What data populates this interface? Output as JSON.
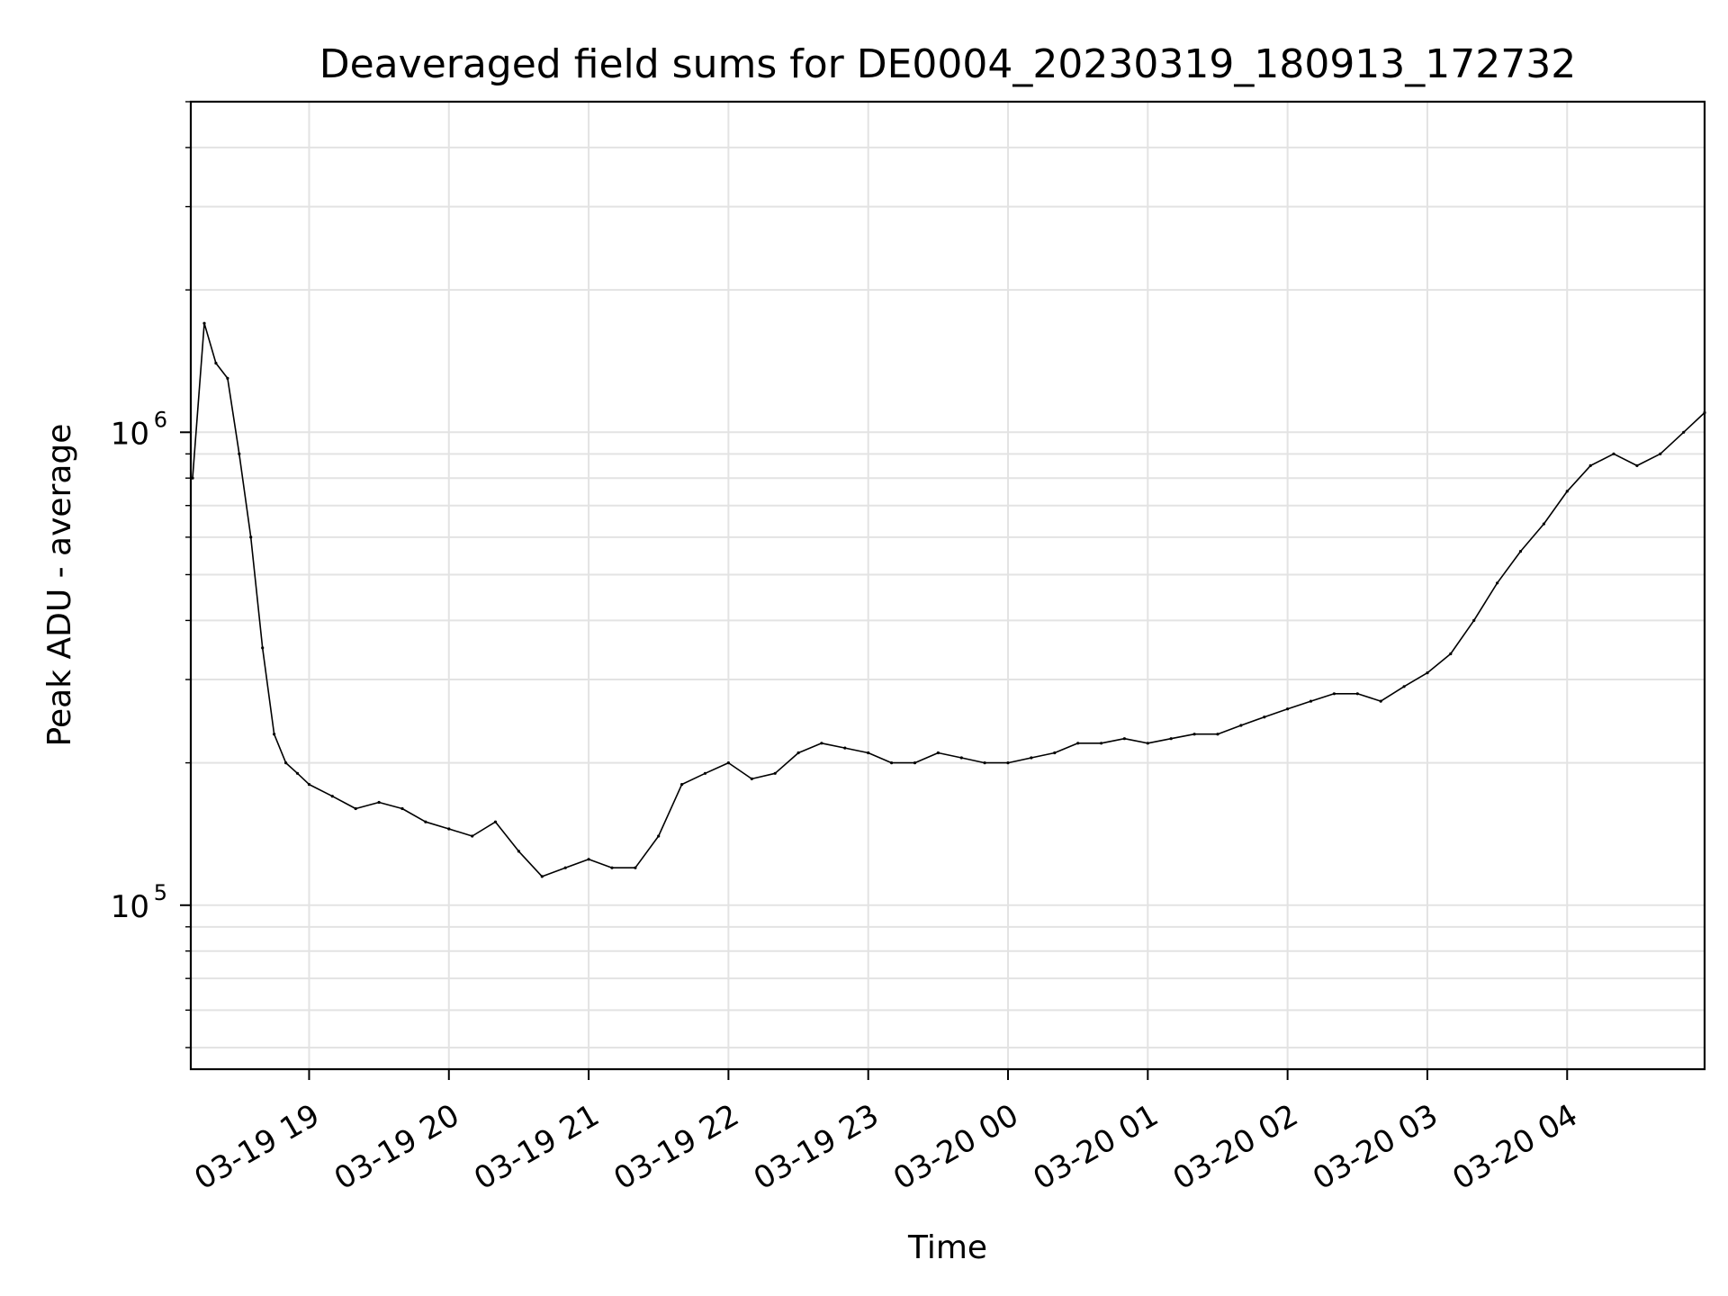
{
  "chart_data": {
    "type": "line",
    "title": "Deaveraged field sums for DE0004_20230319_180913_172732",
    "xlabel": "Time",
    "ylabel": "Peak ADU - average",
    "yscale": "log",
    "ylim": [
      45000,
      5000000
    ],
    "x_range": [
      "2023-03-19 18:09:13",
      "2023-03-20 04:59:00"
    ],
    "x_ticks": [
      {
        "label": "03-19 19",
        "time": "2023-03-19 19:00"
      },
      {
        "label": "03-19 20",
        "time": "2023-03-19 20:00"
      },
      {
        "label": "03-19 21",
        "time": "2023-03-19 21:00"
      },
      {
        "label": "03-19 22",
        "time": "2023-03-19 22:00"
      },
      {
        "label": "03-19 23",
        "time": "2023-03-19 23:00"
      },
      {
        "label": "03-20 00",
        "time": "2023-03-20 00:00"
      },
      {
        "label": "03-20 01",
        "time": "2023-03-20 01:00"
      },
      {
        "label": "03-20 02",
        "time": "2023-03-20 02:00"
      },
      {
        "label": "03-20 03",
        "time": "2023-03-20 03:00"
      },
      {
        "label": "03-20 04",
        "time": "2023-03-20 04:00"
      }
    ],
    "y_ticks": [
      {
        "base": "10",
        "exp": "5",
        "value": 100000
      },
      {
        "base": "10",
        "exp": "6",
        "value": 1000000
      }
    ],
    "grid": true,
    "line_color": "#000000",
    "series": [
      {
        "values": [
          [
            "2023-03-19 18:10",
            800000
          ],
          [
            "2023-03-19 18:15",
            1700000
          ],
          [
            "2023-03-19 18:20",
            1400000
          ],
          [
            "2023-03-19 18:25",
            1300000
          ],
          [
            "2023-03-19 18:30",
            900000
          ],
          [
            "2023-03-19 18:35",
            600000
          ],
          [
            "2023-03-19 18:40",
            350000
          ],
          [
            "2023-03-19 18:45",
            230000
          ],
          [
            "2023-03-19 18:50",
            200000
          ],
          [
            "2023-03-19 18:55",
            190000
          ],
          [
            "2023-03-19 19:00",
            180000
          ],
          [
            "2023-03-19 19:10",
            170000
          ],
          [
            "2023-03-19 19:20",
            160000
          ],
          [
            "2023-03-19 19:30",
            165000
          ],
          [
            "2023-03-19 19:40",
            160000
          ],
          [
            "2023-03-19 19:50",
            150000
          ],
          [
            "2023-03-19 20:00",
            145000
          ],
          [
            "2023-03-19 20:10",
            140000
          ],
          [
            "2023-03-19 20:20",
            150000
          ],
          [
            "2023-03-19 20:30",
            130000
          ],
          [
            "2023-03-19 20:40",
            115000
          ],
          [
            "2023-03-19 20:50",
            120000
          ],
          [
            "2023-03-19 21:00",
            125000
          ],
          [
            "2023-03-19 21:10",
            120000
          ],
          [
            "2023-03-19 21:20",
            120000
          ],
          [
            "2023-03-19 21:30",
            140000
          ],
          [
            "2023-03-19 21:40",
            180000
          ],
          [
            "2023-03-19 21:50",
            190000
          ],
          [
            "2023-03-19 22:00",
            200000
          ],
          [
            "2023-03-19 22:10",
            185000
          ],
          [
            "2023-03-19 22:20",
            190000
          ],
          [
            "2023-03-19 22:30",
            210000
          ],
          [
            "2023-03-19 22:40",
            220000
          ],
          [
            "2023-03-19 22:50",
            215000
          ],
          [
            "2023-03-19 23:00",
            210000
          ],
          [
            "2023-03-19 23:10",
            200000
          ],
          [
            "2023-03-19 23:20",
            200000
          ],
          [
            "2023-03-19 23:30",
            210000
          ],
          [
            "2023-03-19 23:40",
            205000
          ],
          [
            "2023-03-19 23:50",
            200000
          ],
          [
            "2023-03-20 00:00",
            200000
          ],
          [
            "2023-03-20 00:10",
            205000
          ],
          [
            "2023-03-20 00:20",
            210000
          ],
          [
            "2023-03-20 00:30",
            220000
          ],
          [
            "2023-03-20 00:40",
            220000
          ],
          [
            "2023-03-20 00:50",
            225000
          ],
          [
            "2023-03-20 01:00",
            220000
          ],
          [
            "2023-03-20 01:10",
            225000
          ],
          [
            "2023-03-20 01:20",
            230000
          ],
          [
            "2023-03-20 01:30",
            230000
          ],
          [
            "2023-03-20 01:40",
            240000
          ],
          [
            "2023-03-20 01:50",
            250000
          ],
          [
            "2023-03-20 02:00",
            260000
          ],
          [
            "2023-03-20 02:10",
            270000
          ],
          [
            "2023-03-20 02:20",
            280000
          ],
          [
            "2023-03-20 02:30",
            280000
          ],
          [
            "2023-03-20 02:40",
            270000
          ],
          [
            "2023-03-20 02:50",
            290000
          ],
          [
            "2023-03-20 03:00",
            310000
          ],
          [
            "2023-03-20 03:10",
            340000
          ],
          [
            "2023-03-20 03:20",
            400000
          ],
          [
            "2023-03-20 03:30",
            480000
          ],
          [
            "2023-03-20 03:40",
            560000
          ],
          [
            "2023-03-20 03:50",
            640000
          ],
          [
            "2023-03-20 04:00",
            750000
          ],
          [
            "2023-03-20 04:10",
            850000
          ],
          [
            "2023-03-20 04:20",
            900000
          ],
          [
            "2023-03-20 04:30",
            850000
          ],
          [
            "2023-03-20 04:40",
            900000
          ],
          [
            "2023-03-20 04:50",
            1000000
          ],
          [
            "2023-03-20 04:59",
            1100000
          ]
        ]
      }
    ]
  }
}
